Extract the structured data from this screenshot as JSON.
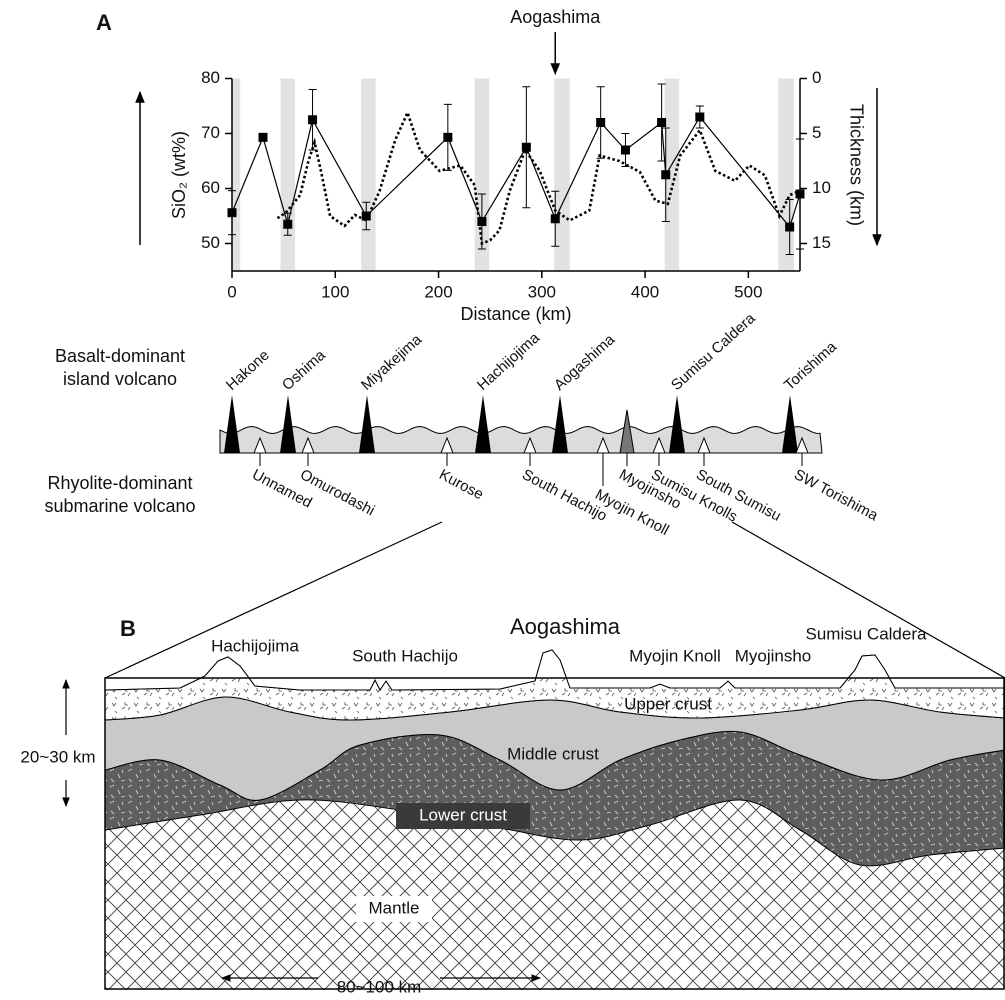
{
  "panel_labels": [
    "A",
    "B"
  ],
  "chart_data": {
    "type": "line",
    "annotation": {
      "text": "Aogashima",
      "x": 313
    },
    "x_label": "Distance (km)",
    "y_label": "SiO₂ (wt%)",
    "y2_label": "Thickness (km)",
    "xlim": [
      0,
      550
    ],
    "xticks": [
      0,
      100,
      200,
      300,
      400,
      500
    ],
    "ylim": [
      45,
      80
    ],
    "yticks": [
      50,
      60,
      70,
      80
    ],
    "y2lim": [
      17.5,
      0
    ],
    "y2ticks": [
      0,
      5,
      10,
      15
    ],
    "bands": [
      [
        0,
        8
      ],
      [
        47,
        61
      ],
      [
        125,
        139
      ],
      [
        235,
        249
      ],
      [
        312,
        327
      ],
      [
        419,
        433
      ],
      [
        529,
        544
      ]
    ],
    "band_color": "#e2e2e2",
    "series": [
      {
        "color": "#000000",
        "style": "solid",
        "marker": "square",
        "x": [
          0,
          30,
          54,
          78,
          130,
          209,
          242,
          285,
          313,
          357,
          381,
          416,
          420,
          453,
          540,
          550
        ],
        "values": [
          55.6,
          69.3,
          53.5,
          72.5,
          55,
          69.3,
          54,
          67.5,
          54.5,
          72,
          67,
          72,
          62.5,
          73,
          53,
          59
        ],
        "errors": [
          4,
          null,
          2,
          5.5,
          2.5,
          6,
          5,
          11,
          5,
          6.5,
          3,
          7,
          8.5,
          2,
          5,
          10
        ]
      },
      {
        "color": "#000000",
        "style": "dotted",
        "axis": "y2",
        "x": [
          44,
          52,
          66,
          74,
          80,
          87,
          95,
          109,
          119,
          130,
          143,
          158,
          170,
          182,
          201,
          221,
          235,
          242,
          250,
          259,
          269,
          284,
          298,
          313,
          327,
          346,
          356,
          375,
          395,
          410,
          422,
          434,
          453,
          468,
          487,
          501,
          516,
          530,
          540,
          550
        ],
        "values": [
          12.7,
          12.2,
          10.6,
          7.5,
          5.8,
          8.8,
          12.5,
          13.4,
          12.4,
          12.9,
          10.2,
          5.6,
          3.1,
          6.5,
          8.4,
          7.9,
          9.7,
          15,
          14.7,
          13.8,
          10.2,
          6.5,
          8.4,
          12,
          12.9,
          12,
          7,
          7.5,
          8.5,
          11.1,
          11.4,
          7,
          4.7,
          8.4,
          9.3,
          7.9,
          8.8,
          12.5,
          10.6,
          10.2
        ]
      }
    ]
  },
  "volcano_strip": {
    "island_label": [
      "Basalt-dominant",
      "island volcano"
    ],
    "submarine_label": [
      "Rhyolite-dominant",
      "submarine volcano"
    ],
    "island_volcanoes": [
      "Hakone",
      "Oshima",
      "Miyakejima",
      "Hachijojima",
      "Aogashima",
      "Sumisu Caldera",
      "Torishima"
    ],
    "submarine_volcanoes": [
      "Unnamed",
      "Omurodashi",
      "Kurose",
      "South Hachijo",
      "Myojin Knoll",
      "Myojinsho",
      "Sumisu Knolls",
      "South Sumisu",
      "SW Torishima"
    ]
  },
  "panel_b": {
    "volcanoes": [
      "Hachijojima",
      "South Hachijo",
      "Aogashima",
      "Myojin Knoll",
      "Myojinsho",
      "Sumisu Caldera"
    ],
    "layers": [
      "Upper crust",
      "Middle crust",
      "Lower crust",
      "Mantle"
    ],
    "depth_scale": "20~30 km",
    "width_scale": "80~100 km"
  }
}
